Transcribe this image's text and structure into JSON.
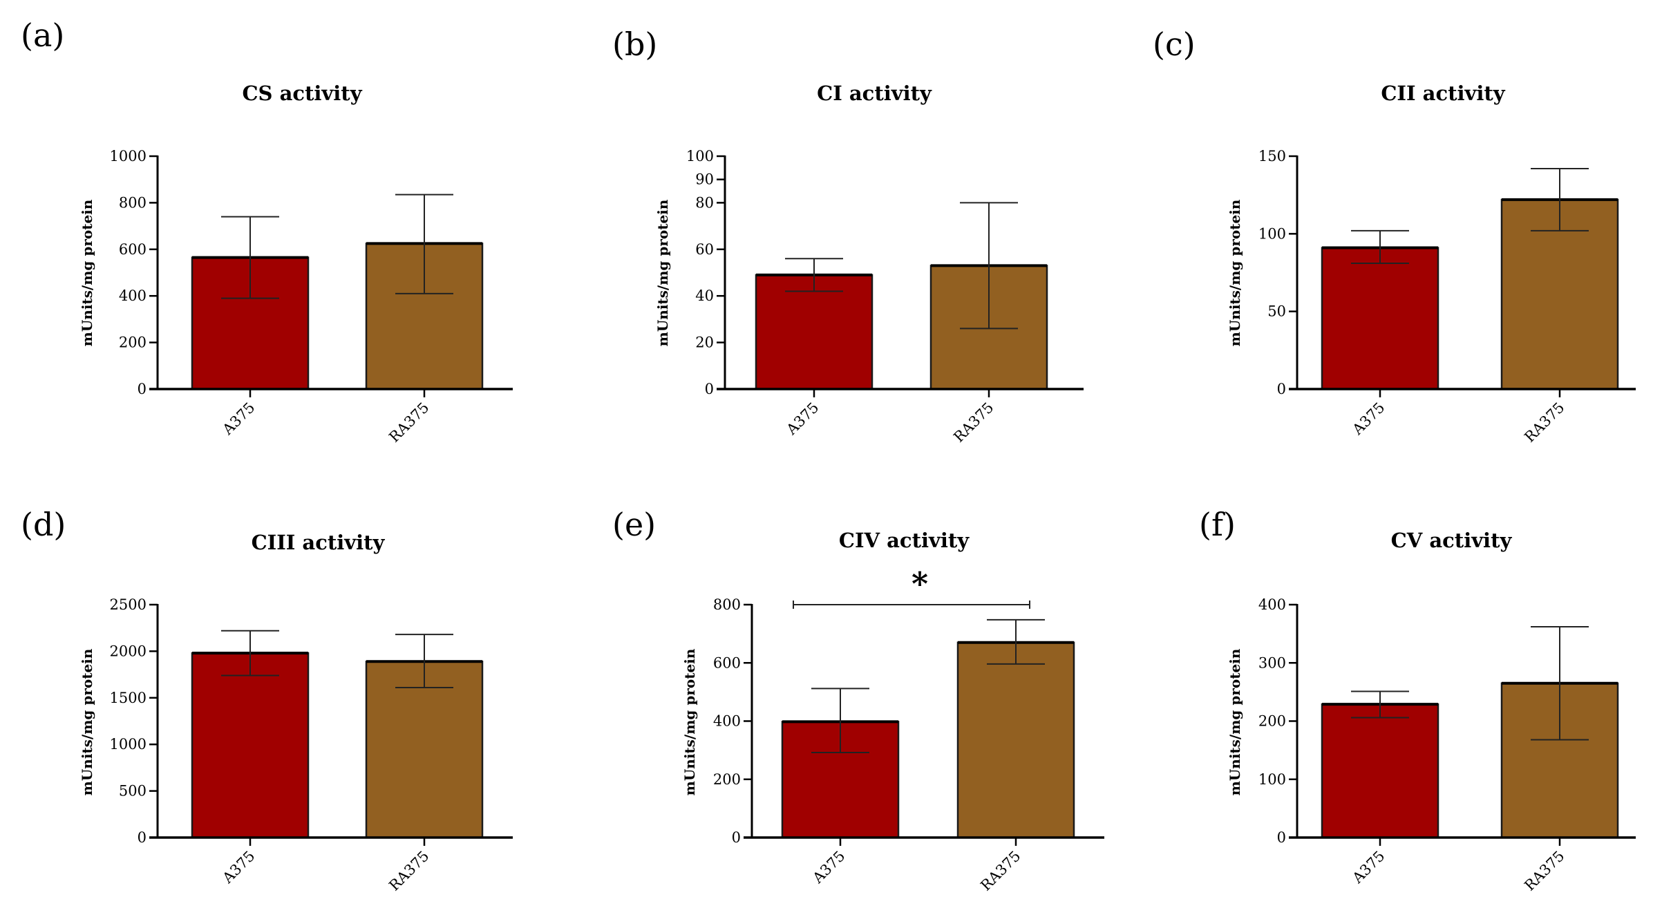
{
  "figure": {
    "colors": {
      "A375": "#a00000",
      "RA375": "#926021",
      "axis": "#000000",
      "bar_outline": "#1a1a1a"
    }
  },
  "chart_data": [
    {
      "panel": "(a)",
      "type": "bar",
      "title": "CS activity",
      "ylabel": "mUnits/mg protein",
      "xlabel": "",
      "categories": [
        "A375",
        "RA375"
      ],
      "values": [
        565,
        625
      ],
      "errors": [
        [
          390,
          740
        ],
        [
          410,
          835
        ]
      ],
      "ylim": [
        0,
        1000
      ],
      "yticks": [
        "0",
        "200",
        "400",
        "600",
        "800",
        "1000"
      ],
      "significance": ""
    },
    {
      "panel": "(b)",
      "type": "bar",
      "title": "CI activity",
      "ylabel": "mUnits/mg protein",
      "xlabel": "",
      "categories": [
        "A375",
        "RA375"
      ],
      "values": [
        49,
        53
      ],
      "errors": [
        [
          42,
          56
        ],
        [
          26,
          80
        ]
      ],
      "ylim": [
        0,
        100
      ],
      "yticks": [
        "0",
        "20",
        "40",
        "60",
        "80",
        "90",
        "100"
      ],
      "significance": ""
    },
    {
      "panel": "(c)",
      "type": "bar",
      "title": "CII activity",
      "ylabel": "mUnits/mg protein",
      "xlabel": "",
      "categories": [
        "A375",
        "RA375"
      ],
      "values": [
        91,
        122
      ],
      "errors": [
        [
          81,
          102
        ],
        [
          102,
          142
        ]
      ],
      "ylim": [
        0,
        150
      ],
      "yticks": [
        "0",
        "50",
        "100",
        "150"
      ],
      "significance": ""
    },
    {
      "panel": "(d)",
      "type": "bar",
      "title": "CIII activity",
      "ylabel": "mUnits/mg protein",
      "xlabel": "",
      "categories": [
        "A375",
        "RA375"
      ],
      "values": [
        1980,
        1890
      ],
      "errors": [
        [
          1740,
          2220
        ],
        [
          1610,
          2180
        ]
      ],
      "ylim": [
        0,
        2500
      ],
      "yticks": [
        "0",
        "500",
        "1000",
        "1500",
        "2000",
        "2500"
      ],
      "significance": ""
    },
    {
      "panel": "(e)",
      "type": "bar",
      "title": "CIV activity",
      "ylabel": "mUnits/mg protein",
      "xlabel": "",
      "categories": [
        "A375",
        "RA375"
      ],
      "values": [
        398,
        670
      ],
      "errors": [
        [
          292,
          512
        ],
        [
          596,
          748
        ]
      ],
      "ylim": [
        0,
        800
      ],
      "yticks": [
        "0",
        "200",
        "400",
        "600",
        "800"
      ],
      "significance": "*"
    },
    {
      "panel": "(f)",
      "type": "bar",
      "title": "CV activity",
      "ylabel": "mUnits/mg protein",
      "xlabel": "",
      "categories": [
        "A375",
        "RA375"
      ],
      "values": [
        229,
        265
      ],
      "errors": [
        [
          206,
          251
        ],
        [
          168,
          362
        ]
      ],
      "ylim": [
        0,
        400
      ],
      "yticks": [
        "0",
        "100",
        "200",
        "300",
        "400"
      ],
      "significance": ""
    }
  ]
}
